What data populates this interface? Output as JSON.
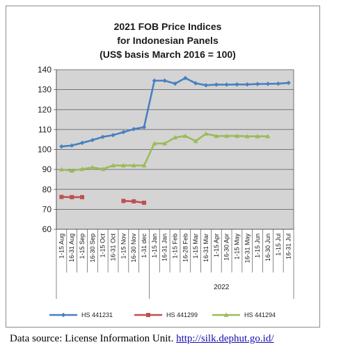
{
  "chart_data": {
    "type": "line",
    "title_lines": [
      "2021 FOB Price Indices",
      "for Indonesian Panels",
      "(US$ basis March 2016 = 100)"
    ],
    "categories": [
      "1-15 Aug",
      "16-31 Aug",
      "1-15 Sep",
      "16-30 Sep",
      "1-15 Oct",
      "16-31 Oct",
      "1-15 Nov",
      "16-30 Nov",
      "1-31 dec",
      "1-15 Jan",
      "16-31 Jan",
      "1-15 Feb",
      "16-28 Feb",
      "1-15 Mar",
      "16-31 Mar",
      "1-15 Apr",
      "16-30 Apr",
      "1-15 May",
      "16-31 May",
      "1-15 Jun",
      "16-30 Jun",
      "1-15 Jul",
      "16-31 Jul"
    ],
    "year_label": "2022",
    "year_start_index": 9,
    "ylim": [
      60,
      140
    ],
    "yticks": [
      60,
      70,
      80,
      90,
      100,
      110,
      120,
      130,
      140
    ],
    "grid": true,
    "legend_position": "bottom",
    "series": [
      {
        "name": "HS 441231",
        "color": "#4a7fc1",
        "marker": "diamond",
        "values": [
          101.5,
          102,
          103.3,
          104.7,
          106.3,
          107.2,
          108.7,
          110.2,
          111.2,
          134.5,
          134.5,
          133,
          135.8,
          133.2,
          132.2,
          132.5,
          132.5,
          132.6,
          132.6,
          132.8,
          132.9,
          133,
          133.4
        ]
      },
      {
        "name": "HS 441299",
        "color": "#c0504d",
        "marker": "square",
        "values": [
          76.2,
          76.1,
          76.1,
          null,
          null,
          null,
          74.2,
          74,
          73.3,
          null,
          null,
          null,
          null,
          null,
          null,
          null,
          null,
          null,
          null,
          null,
          null,
          null,
          null
        ]
      },
      {
        "name": "HS 441294",
        "color": "#9bbb59",
        "marker": "triangle",
        "values": [
          90,
          89.3,
          90.2,
          91,
          90.2,
          92,
          92,
          92,
          92,
          103,
          103,
          106,
          106.8,
          104.2,
          107.9,
          106.7,
          106.8,
          106.8,
          106.6,
          106.6,
          106.6,
          null,
          null
        ]
      }
    ]
  },
  "source": {
    "prefix": "Data source: License Information Unit.",
    "link": "http://silk.dephut.go.id/"
  }
}
